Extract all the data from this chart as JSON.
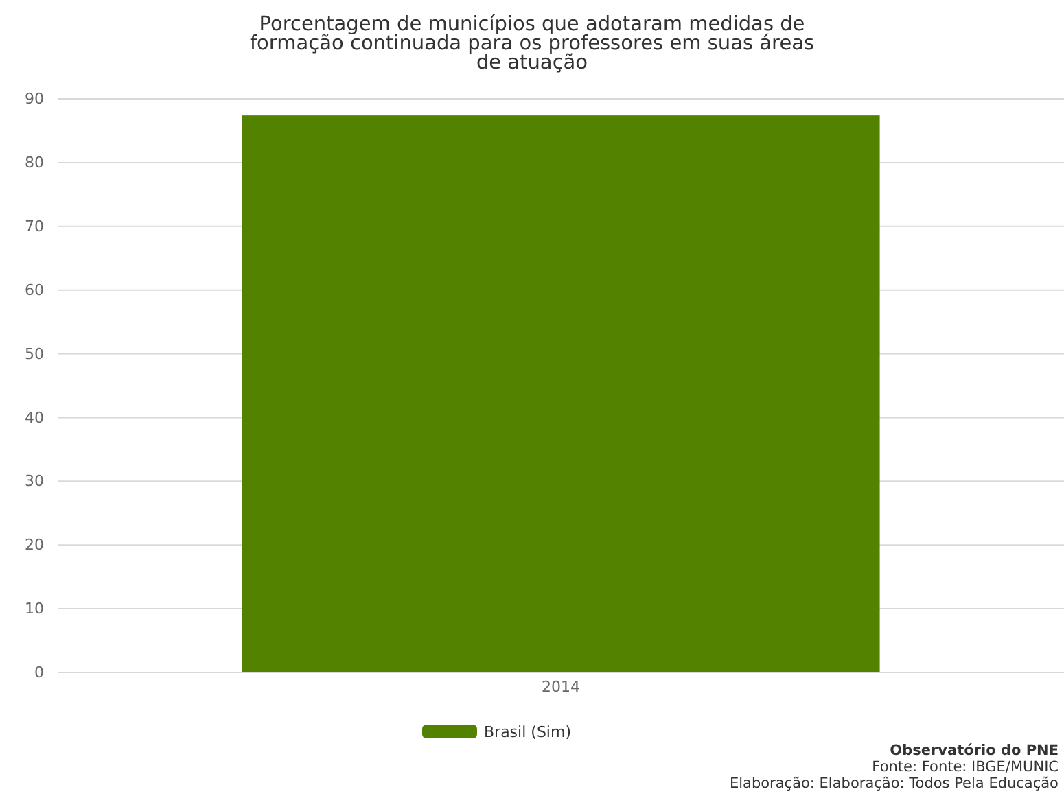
{
  "chart_data": {
    "type": "bar",
    "title": "Porcentagem de municípios que adotaram medidas de formação continuada para os professores em suas áreas de atuação",
    "categories": [
      "2014"
    ],
    "series": [
      {
        "name": "Brasil (Sim)",
        "color": "#538200",
        "values": [
          87.4
        ]
      }
    ],
    "ylim": [
      0,
      90
    ],
    "yticks": [
      0,
      10,
      20,
      30,
      40,
      50,
      60,
      70,
      80,
      90
    ],
    "grid": "y",
    "legend": "bottom",
    "annotations": [
      "Observatório do PNE",
      "Fonte: Fonte: IBGE/MUNIC",
      "Elaboração: Elaboração: Todos Pela Educação"
    ]
  }
}
